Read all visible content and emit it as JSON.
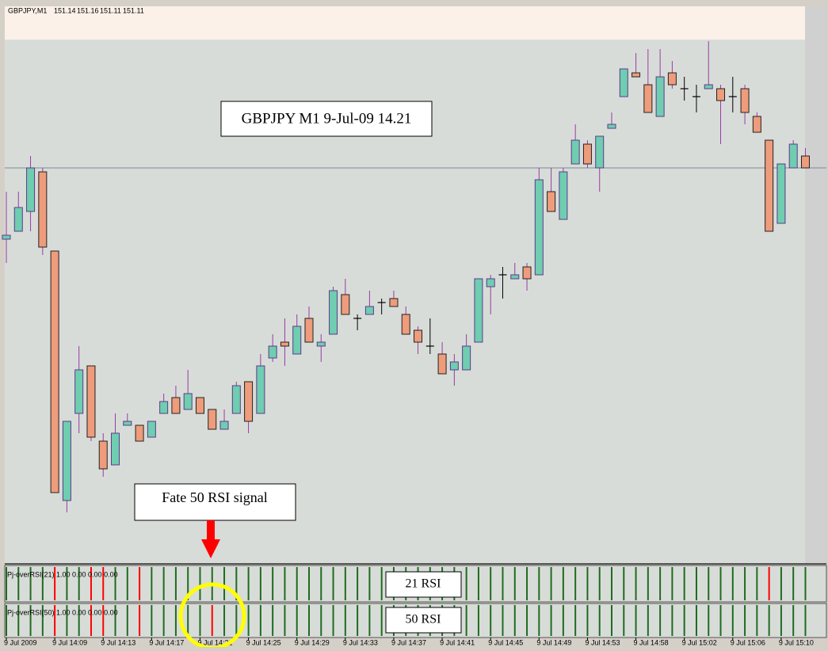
{
  "chart_data": {
    "type": "candlestick",
    "symbol": "GBPJPY,M1",
    "categories": [
      "9 Jul 2009",
      null,
      null,
      null,
      "9 Jul 14:09",
      null,
      null,
      null,
      "9 Jul 14:13",
      null,
      null,
      null,
      "9 Jul 14:17",
      null,
      null,
      null,
      "9 Jul 14:21",
      null,
      null,
      null,
      "9 Jul 14:25",
      null,
      null,
      null,
      "9 Jul 14:29",
      null,
      null,
      null,
      "9 Jul 14:33",
      null,
      null,
      null,
      "9 Jul 14:37",
      null,
      null,
      null,
      "9 Jul 14:41",
      null,
      null,
      null,
      "9 Jul 14:45",
      null,
      null,
      null,
      "9 Jul 14:49",
      null,
      null,
      null,
      "9 Jul 14:53",
      null,
      null,
      null,
      "9 Jul 14:58",
      null,
      null,
      null,
      "9 Jul 15:02",
      null,
      null,
      null,
      "9 Jul 15:06",
      null,
      null,
      null,
      "9 Jul 15:10",
      null,
      null
    ],
    "open": [
      150.93,
      150.95,
      151.0,
      151.1,
      150.9,
      150.27,
      150.49,
      150.61,
      150.42,
      150.36,
      150.46,
      150.46,
      150.43,
      150.49,
      150.53,
      150.5,
      150.53,
      150.5,
      150.45,
      150.49,
      150.57,
      150.49,
      150.63,
      150.67,
      150.64,
      150.73,
      150.66,
      150.69,
      150.79,
      150.73,
      150.74,
      150.77,
      150.78,
      150.74,
      150.7,
      150.66,
      150.64,
      150.6,
      150.6,
      150.67,
      150.81,
      150.84,
      150.83,
      150.86,
      150.84,
      151.05,
      150.98,
      151.12,
      151.17,
      151.11,
      151.21,
      151.29,
      151.35,
      151.32,
      151.24,
      151.35,
      151.31,
      151.29,
      151.31,
      151.31,
      151.29,
      151.31,
      151.24,
      151.18,
      150.97,
      151.11,
      151.14
    ],
    "high": [
      151.05,
      151.05,
      151.14,
      151.11,
      150.9,
      150.47,
      150.66,
      150.61,
      150.44,
      150.49,
      150.49,
      150.46,
      150.47,
      150.54,
      150.56,
      150.6,
      150.53,
      150.5,
      150.5,
      150.57,
      150.57,
      150.64,
      150.69,
      150.73,
      150.74,
      150.76,
      150.69,
      150.81,
      150.83,
      150.74,
      150.8,
      150.78,
      150.8,
      150.76,
      150.71,
      150.73,
      150.67,
      150.64,
      150.69,
      150.83,
      150.84,
      150.86,
      150.87,
      150.87,
      151.11,
      151.11,
      151.11,
      151.22,
      151.18,
      151.19,
      151.25,
      151.36,
      151.4,
      151.41,
      151.41,
      151.38,
      151.34,
      151.32,
      151.43,
      151.32,
      151.34,
      151.32,
      151.25,
      151.18,
      151.12,
      151.18,
      151.16
    ],
    "low": [
      150.87,
      150.95,
      150.95,
      150.89,
      150.29,
      150.24,
      150.44,
      150.42,
      150.33,
      150.36,
      150.46,
      150.42,
      150.43,
      150.49,
      150.49,
      150.5,
      150.49,
      150.45,
      150.45,
      150.49,
      150.44,
      150.49,
      150.62,
      150.61,
      150.64,
      150.67,
      150.62,
      150.69,
      150.74,
      150.7,
      150.74,
      150.74,
      150.76,
      150.69,
      150.64,
      150.64,
      150.59,
      150.56,
      150.6,
      150.67,
      150.74,
      150.78,
      150.83,
      150.8,
      150.84,
      151.0,
      150.98,
      151.12,
      151.11,
      151.05,
      151.21,
      151.29,
      151.34,
      151.25,
      151.24,
      151.31,
      151.28,
      151.25,
      151.31,
      151.17,
      151.25,
      151.22,
      151.2,
      150.95,
      150.97,
      151.11,
      151.11
    ],
    "close": [
      150.94,
      151.01,
      151.11,
      150.91,
      150.29,
      150.47,
      150.6,
      150.43,
      150.35,
      150.44,
      150.47,
      150.42,
      150.47,
      150.52,
      150.49,
      150.54,
      150.49,
      150.45,
      150.47,
      150.56,
      150.47,
      150.61,
      150.66,
      150.66,
      150.71,
      150.67,
      150.67,
      150.8,
      150.74,
      150.73,
      150.76,
      150.77,
      150.76,
      150.69,
      150.67,
      150.66,
      150.59,
      150.62,
      150.66,
      150.83,
      150.83,
      150.84,
      150.84,
      150.83,
      151.08,
      151.0,
      151.1,
      151.18,
      151.12,
      151.19,
      151.22,
      151.36,
      151.34,
      151.25,
      151.34,
      151.32,
      151.31,
      151.29,
      151.32,
      151.28,
      151.29,
      151.25,
      151.2,
      150.95,
      151.12,
      151.17,
      151.11
    ],
    "ylim": [
      150.114,
      151.434
    ],
    "price_line": 151.11,
    "bull_color": "#6fcdb0",
    "bear_color": "#ee9c7c",
    "wick_color": "#9a3aa6",
    "annotations": [
      "GBPJPY M1 9-Jul-09 14.21",
      "Fate 50 RSI signal"
    ],
    "indicators": [
      {
        "label": "Pj-overRSI(21) 1.00 0.00 0.00 0.00",
        "name": "21 RSI",
        "signals": [
          0,
          0,
          0,
          0,
          1,
          0,
          0,
          1,
          1,
          0,
          0,
          1,
          0,
          0,
          0,
          0,
          0,
          0,
          0,
          0,
          0,
          0,
          0,
          0,
          0,
          0,
          0,
          0,
          0,
          0,
          0,
          0,
          0,
          0,
          0,
          0,
          0,
          0,
          0,
          0,
          0,
          0,
          0,
          0,
          0,
          0,
          0,
          0,
          0,
          0,
          0,
          0,
          0,
          0,
          0,
          0,
          0,
          0,
          0,
          0,
          0,
          0,
          0,
          1,
          0,
          0,
          0
        ]
      },
      {
        "label": "Pj-overRSI(50) 1.00 0.00 0.00 0.00",
        "name": "50 RSI",
        "signals": [
          0,
          0,
          0,
          0,
          1,
          0,
          0,
          1,
          1,
          0,
          0,
          1,
          0,
          0,
          0,
          0,
          0,
          1,
          0,
          0,
          0,
          0,
          0,
          0,
          0,
          0,
          0,
          0,
          0,
          0,
          0,
          0,
          0,
          0,
          0,
          0,
          0,
          0,
          0,
          0,
          0,
          0,
          0,
          0,
          0,
          0,
          0,
          0,
          0,
          0,
          0,
          0,
          0,
          0,
          0,
          0,
          0,
          0,
          0,
          0,
          0,
          0,
          0,
          0,
          0,
          0,
          0
        ]
      }
    ],
    "indicator_color": "#1f6b1f",
    "signal_color": "#ff0000"
  }
}
